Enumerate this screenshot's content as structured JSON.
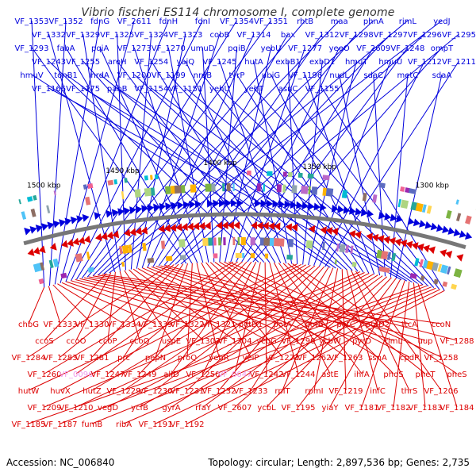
{
  "header": {
    "title": "Vibrio fischeri ES114 chromosome I, complete genome"
  },
  "footer": {
    "accession": "Accession: NC_006840",
    "summary": "Topology: circular; Length: 2,897,536 bp; Genes: 2,735"
  },
  "colors": {
    "forward": "#0000dd",
    "reverse": "#dd0000",
    "faded": "#ee99ee",
    "backbone": "#777777"
  },
  "ticks": [
    "1500 kbp",
    "1450 kbp",
    "1400 kbp",
    "1350 kbp",
    "1300 kbp"
  ],
  "forward_genes": [
    "VF_1353",
    "VF_1352",
    "fdnG",
    "VF_2611",
    "fdnH",
    "fdnI",
    "VF_1354",
    "VF_1351",
    "rhtB",
    "maa",
    "phnA",
    "rimL",
    "yedJ",
    "VF_1332",
    "VF_1329",
    "VF_1325",
    "VF_1324",
    "VF_1323",
    "cobB",
    "VF_1314",
    "bax",
    "VF_1312",
    "VF_1298",
    "VF_1297",
    "VF_1296",
    "VF_1295",
    "VF_1293",
    "fabA",
    "pqiA",
    "VF_1273",
    "VF_1270",
    "umuD",
    "pqiB",
    "yebU",
    "VF_1277",
    "yeeO",
    "VF_2609",
    "VF_1248",
    "ompT",
    "VF_1243",
    "VF_1255",
    "aroH",
    "VF_1254",
    "yajQ",
    "VF_1245",
    "hutA",
    "exbB1",
    "exbD1",
    "hmuT",
    "hmuU",
    "VF_1212",
    "VF_1211",
    "hmuV",
    "tonB1",
    "nrdA",
    "VF_1200",
    "VF_1199",
    "nrdB",
    "tyrP",
    "ubiG",
    "VF_1196",
    "nudL",
    "sdaC",
    "metC",
    "sdaA",
    "VF_1166",
    "VF_1175",
    "pabB",
    "VF_1154",
    "VF_1151",
    "yehU",
    "yehT",
    "asnC",
    "VF_1155"
  ],
  "reverse_genes": [
    "chbG",
    "VF_1333",
    "VF_1330",
    "VF_1334",
    "VF_1339",
    "VF_1322",
    "VF_1321",
    "potD1",
    "potA",
    "potB",
    "potC",
    "potD2",
    "ttcA",
    "ccoN",
    "ccoS",
    "ccoO",
    "ccoP",
    "ccoQ",
    "uspE",
    "VF_1303",
    "VF_1304",
    "ycbG",
    "VF_1290",
    "ycbW",
    "pyrD",
    "rimL",
    "uup",
    "VF_1288",
    "VF_1284",
    "VF_1283",
    "VF_1281",
    "prc",
    "pepN",
    "proQ",
    "yebR",
    "yeiP",
    "VF_1271",
    "VF_1262",
    "VF_1263",
    "ssnA",
    "cpdP",
    "VF_1258",
    "VF_1260",
    "VF_0096",
    "VF_1247",
    "VF_1249",
    "allD",
    "VF_1250",
    "VF_0047",
    "VF_1242",
    "VF_1244",
    "astE",
    "ihfA",
    "phoS",
    "pheT",
    "pheS",
    "hutW",
    "huvX",
    "hutZ",
    "VF_1229",
    "VF_1230",
    "VF_1231",
    "VF_1232",
    "VF_1233",
    "rplT",
    "rpmI",
    "VF_1219",
    "infC",
    "thrS",
    "VF_1206",
    "VF_1209",
    "VF_1210",
    "vegD",
    "ycfB",
    "gyrA",
    "rfaY",
    "VF_2607",
    "ycbL",
    "VF_1195",
    "yiaY",
    "VF_1181",
    "VF_1182",
    "VF_1183",
    "VF_1184",
    "VF_1185",
    "VF_1187",
    "fumB",
    "ribA",
    "VF_1191",
    "VF_1192"
  ]
}
